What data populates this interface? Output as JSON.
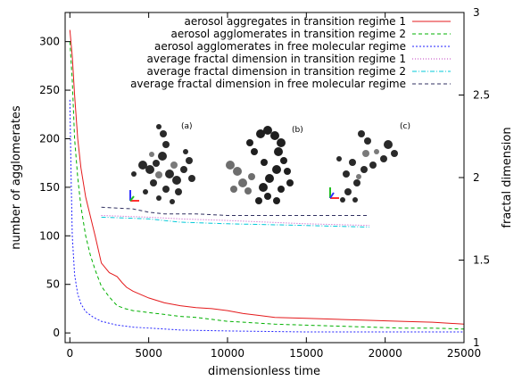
{
  "chart_data": {
    "type": "line",
    "xlabel": "dimensionless time",
    "ylabel": "number of agglomerates",
    "y2label": "fractal dimension",
    "xlim": [
      -300,
      25000
    ],
    "ylim": [
      -10,
      330
    ],
    "y2lim": [
      1.0,
      3.0
    ],
    "xticks": [
      "0",
      "5000",
      "10000",
      "15000",
      "20000",
      "25000"
    ],
    "yticks": [
      "0",
      "50",
      "100",
      "150",
      "200",
      "250",
      "300"
    ],
    "y2ticks": [
      "1",
      "1.5",
      "2",
      "2.5",
      "3"
    ],
    "legend_position": "top-right",
    "panel_labels": [
      "(a)",
      "(b)",
      "(c)"
    ],
    "series": [
      {
        "name": "aerosol aggregates in transition regime 1",
        "axis": "left",
        "color": "#e41a1c",
        "dash": "",
        "x": [
          0,
          150,
          300,
          500,
          700,
          1000,
          1300,
          1600,
          2000,
          2500,
          3000,
          3300,
          3600,
          4000,
          5000,
          6000,
          7000,
          8000,
          9000,
          10000,
          11000,
          12000,
          13000,
          15000,
          17000,
          19000,
          21000,
          23000,
          25000
        ],
        "values": [
          312,
          285,
          245,
          200,
          170,
          140,
          120,
          100,
          72,
          62,
          58,
          52,
          47,
          43,
          36,
          31,
          28,
          26,
          25,
          23,
          20,
          18,
          16,
          15,
          14,
          13,
          12,
          11,
          9
        ]
      },
      {
        "name": "aerosol agglomerates in transition regime 2",
        "axis": "left",
        "color": "#00b000",
        "dash": "4,3",
        "x": [
          0,
          150,
          300,
          500,
          700,
          1000,
          1300,
          1600,
          2000,
          2500,
          3000,
          3500,
          4000,
          5000,
          6000,
          7000,
          8000,
          9000,
          10000,
          11000,
          12000,
          13000,
          15000,
          17000,
          19000,
          21000,
          23000,
          25000
        ],
        "values": [
          300,
          260,
          200,
          160,
          130,
          100,
          80,
          65,
          48,
          37,
          28,
          25,
          23,
          21,
          19,
          17,
          16,
          14,
          12,
          11,
          10,
          9,
          8,
          7,
          6,
          5,
          5,
          4
        ]
      },
      {
        "name": "aerosol agglomerates in free molecular regime",
        "axis": "left",
        "color": "#2020ff",
        "dash": "2,2",
        "x": [
          0,
          80,
          150,
          300,
          500,
          700,
          1000,
          1500,
          2000,
          3000,
          4000,
          5000,
          7000,
          10000,
          15000,
          20000,
          25000
        ],
        "values": [
          240,
          160,
          100,
          60,
          40,
          30,
          22,
          16,
          12,
          8,
          6,
          5,
          3,
          2,
          1,
          1,
          1
        ]
      },
      {
        "name": "average fractal dimension in transition regime 1",
        "axis": "right",
        "color": "#c040c0",
        "dash": "1,2",
        "x": [
          2000,
          5000,
          7000,
          10000,
          15000,
          19000
        ],
        "values": [
          1.77,
          1.76,
          1.75,
          1.74,
          1.72,
          1.71
        ]
      },
      {
        "name": "average fractal dimension in transition regime 2",
        "axis": "right",
        "color": "#00c8d8",
        "dash": "5,2,1,2",
        "x": [
          2000,
          5000,
          7000,
          10000,
          15000,
          19000
        ],
        "values": [
          1.76,
          1.75,
          1.73,
          1.72,
          1.71,
          1.7
        ]
      },
      {
        "name": "average fractal dimension in free molecular regime",
        "axis": "right",
        "color": "#303060",
        "dash": "4,3",
        "x": [
          2000,
          4000,
          5000,
          6000,
          8000,
          10000,
          15000,
          19000
        ],
        "values": [
          1.82,
          1.81,
          1.79,
          1.78,
          1.78,
          1.77,
          1.77,
          1.77
        ]
      }
    ]
  }
}
